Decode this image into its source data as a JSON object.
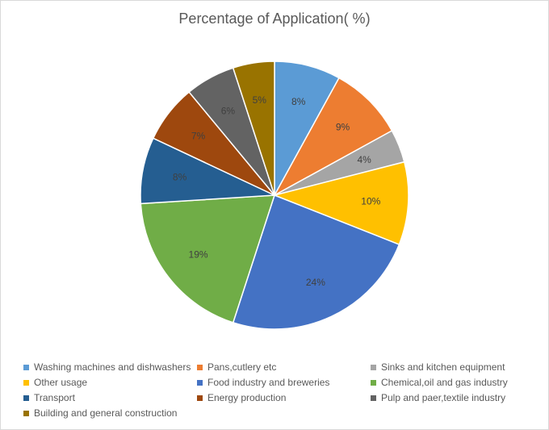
{
  "chart_data": {
    "type": "pie",
    "title": "Percentage of Application( %)",
    "categories": [
      "Washing machines and dishwashers",
      "Pans,cutlery etc",
      "Sinks and kitchen equipment",
      "Other usage",
      "Food industry and breweries",
      "Chemical,oil and gas industry",
      "Transport",
      "Energy production",
      "Pulp and paer,textile industry",
      "Building and general construction"
    ],
    "values": [
      8,
      9,
      4,
      10,
      24,
      19,
      8,
      7,
      6,
      5
    ],
    "data_labels": [
      "8%",
      "9%",
      "4%",
      "10%",
      "24%",
      "19%",
      "8%",
      "7%",
      "6%",
      "5%"
    ],
    "colors": [
      "#5b9bd5",
      "#ed7d31",
      "#a5a5a5",
      "#ffc000",
      "#4472c4",
      "#70ad47",
      "#255e91",
      "#9e480e",
      "#636363",
      "#997300"
    ],
    "legend_position": "bottom"
  }
}
